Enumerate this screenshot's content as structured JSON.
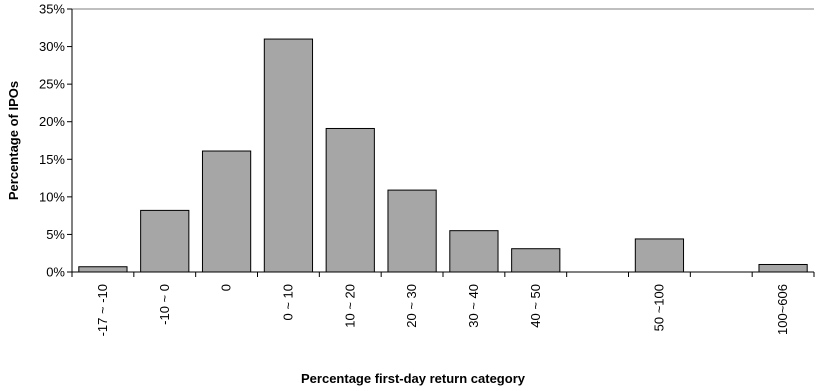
{
  "chart_data": {
    "type": "bar",
    "title": "",
    "xlabel": "Percentage first-day return category",
    "ylabel": "Percentage of IPOs",
    "categories": [
      "-17 ~ -10",
      "-10 ~ 0",
      "0",
      "0 ~ 10",
      "10 ~ 20",
      "20 ~ 30",
      "30 ~ 40",
      "40 ~ 50",
      "",
      "50 ~100",
      "",
      "100~606"
    ],
    "values": [
      0.7,
      8.2,
      16.1,
      31.0,
      19.1,
      10.9,
      5.5,
      3.1,
      0,
      4.4,
      0,
      1.0
    ],
    "ylim": [
      0,
      35
    ],
    "yticks": [
      "0%",
      "5%",
      "10%",
      "15%",
      "20%",
      "25%",
      "30%",
      "35%"
    ],
    "grid": false,
    "legend": "none",
    "bar_color": "#a6a6a6",
    "bar_edge_color": "#000000"
  }
}
